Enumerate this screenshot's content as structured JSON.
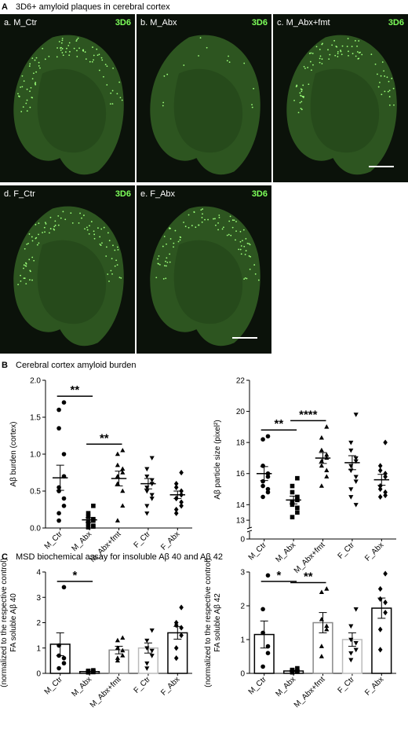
{
  "figure": {
    "panel_a": {
      "letter": "A",
      "title": "3D6+ amyloid plaques in cerebral cortex"
    },
    "panel_b": {
      "letter": "B",
      "title": "Cerebral cortex amyloid burden"
    },
    "panel_c": {
      "letter": "C",
      "title": "MSD biochemical assay for insoluble Aβ 40 and Aβ 42"
    },
    "images": [
      {
        "label": "a. M_Ctr",
        "stain": "3D6"
      },
      {
        "label": "b. M_Abx",
        "stain": "3D6"
      },
      {
        "label": "c. M_Abx+fmt",
        "stain": "3D6"
      },
      {
        "label": "d. F_Ctr",
        "stain": "3D6"
      },
      {
        "label": "e. F_Abx",
        "stain": "3D6"
      }
    ]
  },
  "chart_data": [
    {
      "type": "dotplot",
      "ylabel": [
        "Aβ burden (cortex)"
      ],
      "categories": [
        "M_Ctr",
        "M_Abx",
        "M_Abx+fmt",
        "F_Ctr",
        "F_Abx"
      ],
      "markers": [
        "circle",
        "square",
        "triangle",
        "invtriangle",
        "diamond"
      ],
      "points": [
        [
          1.7,
          1.6,
          1.35,
          1.0,
          0.7,
          0.55,
          0.5,
          0.4,
          0.3,
          0.2,
          0.1
        ],
        [
          0.3,
          0.2,
          0.15,
          0.12,
          0.1,
          0.08,
          0.05,
          0.03,
          0.02,
          0.01
        ],
        [
          1.05,
          1.0,
          0.85,
          0.8,
          0.75,
          0.7,
          0.6,
          0.5,
          0.3,
          0.1
        ],
        [
          0.95,
          0.8,
          0.7,
          0.65,
          0.6,
          0.55,
          0.5,
          0.45,
          0.4,
          0.3,
          0.2
        ],
        [
          0.75,
          0.6,
          0.55,
          0.5,
          0.45,
          0.4,
          0.4,
          0.35,
          0.3,
          0.25,
          0.2
        ]
      ],
      "means": [
        0.68,
        0.11,
        0.67,
        0.6,
        0.45
      ],
      "errors": [
        0.17,
        0.03,
        0.1,
        0.07,
        0.05
      ],
      "ylim": [
        0,
        2
      ],
      "yticks": [
        {
          "value": 0,
          "label": "0.0"
        },
        0.5,
        {
          "value": 1,
          "label": "1.0"
        },
        1.5,
        {
          "value": 2,
          "label": "2.0"
        }
      ],
      "annotations": [
        {
          "text": "**",
          "between": [
            "M_Ctr",
            "M_Abx"
          ]
        },
        {
          "text": "**",
          "between": [
            "M_Abx",
            "M_Abx+fmt"
          ]
        }
      ]
    },
    {
      "type": "dotplot",
      "ylabel": [
        "Aβ particle size (pixel²)"
      ],
      "categories": [
        "M_Ctr",
        "M_Abx",
        "M_Abx+fmt",
        "F_Ctr",
        "F_Abx"
      ],
      "markers": [
        "circle",
        "square",
        "triangle",
        "invtriangle",
        "diamond"
      ],
      "points": [
        [
          18.4,
          18.2,
          16.5,
          16.0,
          15.8,
          15.5,
          15.2,
          15.0,
          14.8,
          14.5
        ],
        [
          15.7,
          15.2,
          14.8,
          14.5,
          14.3,
          14.2,
          14.0,
          13.8,
          13.5,
          13.2
        ],
        [
          19.0,
          18.3,
          17.5,
          17.2,
          17.0,
          16.8,
          16.5,
          16.2,
          15.8,
          15.2
        ],
        [
          19.8,
          18.0,
          17.5,
          17.0,
          16.8,
          16.5,
          16.2,
          15.8,
          15.5,
          15.0,
          14.5,
          14.0
        ],
        [
          18.0,
          16.5,
          16.2,
          16.0,
          15.8,
          15.2,
          15.0,
          14.8,
          14.6,
          14.5
        ]
      ],
      "means": [
        16.0,
        14.3,
        17.0,
        16.7,
        15.6
      ],
      "errors": [
        0.45,
        0.25,
        0.35,
        0.45,
        0.35
      ],
      "ylim": [
        12.5,
        22
      ],
      "yticks": [
        13,
        14,
        16,
        18,
        20,
        22
      ],
      "break_tick": 0,
      "annotations": [
        {
          "text": "**",
          "between": [
            "M_Ctr",
            "M_Abx"
          ]
        },
        {
          "text": "****",
          "between": [
            "M_Abx",
            "M_Abx+fmt"
          ]
        }
      ]
    },
    {
      "type": "bar",
      "ylabel": [
        "FA soluble Aβ 40",
        "(normalized to the respective control)"
      ],
      "categories": [
        "M_Ctr",
        "M_Abx",
        "M_Abx+fmt",
        "F_Ctr",
        "F_Abx"
      ],
      "markers": [
        "circle",
        "square",
        "triangle",
        "invtriangle",
        "diamond"
      ],
      "bar_edges": [
        "#000000",
        "#000000",
        "#888888",
        "#bbbbbb",
        "#000000"
      ],
      "points": [
        [
          3.4,
          1.1,
          0.7,
          0.6,
          0.4,
          0.2
        ],
        [
          0.12,
          0.1,
          0.08,
          0.07,
          0.05,
          0.05,
          0.04
        ],
        [
          1.4,
          1.3,
          1.0,
          0.9,
          0.7,
          0.6,
          0.5
        ],
        [
          1.7,
          1.3,
          1.0,
          0.9,
          0.7,
          0.4,
          0.2
        ],
        [
          2.6,
          2.0,
          1.9,
          1.8,
          1.5,
          1.0,
          0.6
        ]
      ],
      "means": [
        1.15,
        0.07,
        0.92,
        1.0,
        1.6
      ],
      "errors": [
        0.45,
        0.01,
        0.15,
        0.2,
        0.25
      ],
      "ylim": [
        0,
        4
      ],
      "yticks": [
        0,
        1,
        2,
        3,
        4
      ],
      "annotations": [
        {
          "text": "*",
          "between": [
            "M_Ctr",
            "M_Abx"
          ]
        }
      ]
    },
    {
      "type": "bar",
      "ylabel": [
        "FA soluble Aβ 42",
        "(normalized to the respective control)"
      ],
      "categories": [
        "M_Ctr",
        "M_Abx",
        "M_Abx+fmt",
        "F_Ctr",
        "F_Abx"
      ],
      "markers": [
        "circle",
        "square",
        "triangle",
        "invtriangle",
        "diamond"
      ],
      "bar_edges": [
        "#000000",
        "#000000",
        "#888888",
        "#bbbbbb",
        "#000000"
      ],
      "points": [
        [
          2.9,
          1.9,
          1.2,
          0.8,
          0.6,
          0.2
        ],
        [
          0.15,
          0.1,
          0.1,
          0.05,
          0.05,
          0.03
        ],
        [
          2.5,
          2.4,
          1.6,
          1.4,
          1.3,
          0.8,
          0.5
        ],
        [
          1.9,
          1.4,
          1.0,
          0.9,
          0.7,
          0.6,
          0.4
        ],
        [
          2.95,
          2.5,
          2.2,
          2.1,
          1.8,
          1.3,
          0.7
        ]
      ],
      "means": [
        1.15,
        0.07,
        1.5,
        1.0,
        1.93
      ],
      "errors": [
        0.4,
        0.02,
        0.3,
        0.2,
        0.3
      ],
      "ylim": [
        0,
        3
      ],
      "yticks": [
        0,
        1,
        2,
        3
      ],
      "annotations": [
        {
          "text": "*",
          "between": [
            "M_Ctr",
            "M_Abx"
          ]
        },
        {
          "text": "**",
          "between": [
            "M_Abx",
            "M_Abx+fmt"
          ]
        }
      ]
    }
  ]
}
